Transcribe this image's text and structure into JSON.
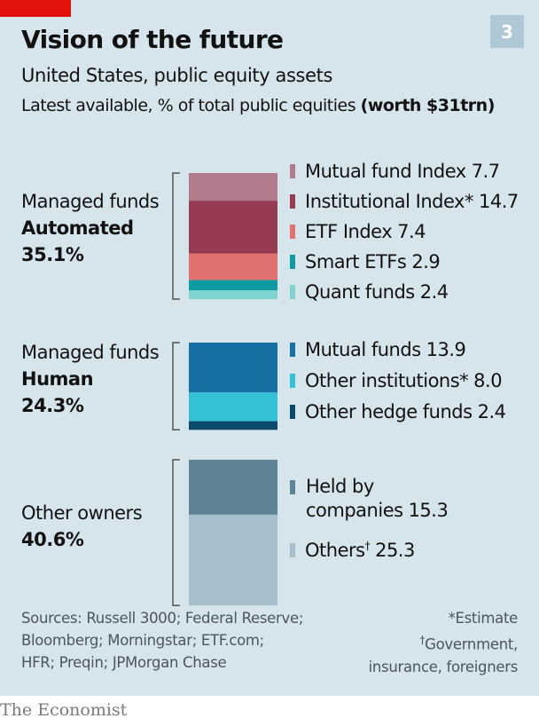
{
  "chart_number": "3",
  "title": "Vision of the future",
  "subtitle": "United States, public equity assets",
  "description": "Latest available, % of total public equities",
  "description_bold": "(worth $31trn)",
  "groups": [
    {
      "line1": "Managed funds",
      "line2": "Automated",
      "total": "35.1%"
    },
    {
      "line1": "Managed funds",
      "line2": "Human",
      "total": "24.3%"
    },
    {
      "line1": "Other owners",
      "line2": "",
      "total": "40.6%"
    }
  ],
  "chart_data": {
    "type": "bar",
    "stacked": true,
    "unit": "% of total public equities",
    "groups": [
      {
        "name": "Managed funds Automated",
        "total": 35.1,
        "segments": [
          {
            "name": "Mutual fund Index",
            "value": 7.7,
            "color": "#b07b8a"
          },
          {
            "name": "Institutional Index*",
            "value": 14.7,
            "color": "#963b51"
          },
          {
            "name": "ETF Index",
            "value": 7.4,
            "color": "#e0716f"
          },
          {
            "name": "Smart ETFs",
            "value": 2.9,
            "color": "#0e9ba2"
          },
          {
            "name": "Quant funds",
            "value": 2.4,
            "color": "#7ed2cf"
          }
        ]
      },
      {
        "name": "Managed funds Human",
        "total": 24.3,
        "segments": [
          {
            "name": "Mutual funds",
            "value": 13.9,
            "color": "#1670a3"
          },
          {
            "name": "Other institutions*",
            "value": 8.0,
            "color": "#33c1d5"
          },
          {
            "name": "Other hedge funds",
            "value": 2.4,
            "color": "#0c4a6c"
          }
        ]
      },
      {
        "name": "Other owners",
        "total": 40.6,
        "segments": [
          {
            "name": "Held by companies",
            "value": 15.3,
            "color": "#5f8496"
          },
          {
            "name": "Others†",
            "value": 25.3,
            "color": "#a6bfcb"
          }
        ]
      }
    ]
  },
  "legend": {
    "a0": {
      "label": "Mutual fund Index",
      "value": "7.7"
    },
    "a1": {
      "label": "Institutional Index*",
      "value": "14.7"
    },
    "a2": {
      "label": "ETF Index",
      "value": "7.4"
    },
    "a3": {
      "label": "Smart ETFs",
      "value": "2.9"
    },
    "a4": {
      "label": "Quant funds",
      "value": "2.4"
    },
    "h0": {
      "label": "Mutual funds",
      "value": "13.9"
    },
    "h1": {
      "label": "Other institutions*",
      "value": "8.0"
    },
    "h2": {
      "label": "Other hedge funds",
      "value": "2.4"
    },
    "o0": {
      "label_line1": "Held by",
      "label_line2": "companies",
      "value": "15.3"
    },
    "o1": {
      "label": "Others",
      "dagger": "†",
      "value": "25.3"
    }
  },
  "footer": {
    "sources": [
      "Sources: Russell 3000; Federal Reserve;",
      "Bloomberg; Morningstar; ETF.com;",
      "HFR; Preqin; JPMorgan Chase"
    ],
    "note1": "*Estimate",
    "note2_dagger": "†",
    "note2": "Government,",
    "note3": "insurance, foreigners"
  },
  "brand": "The Economist",
  "colors": {
    "background": "#d6e4ec",
    "accent_red": "#e3120b",
    "bracket": "#555555"
  }
}
